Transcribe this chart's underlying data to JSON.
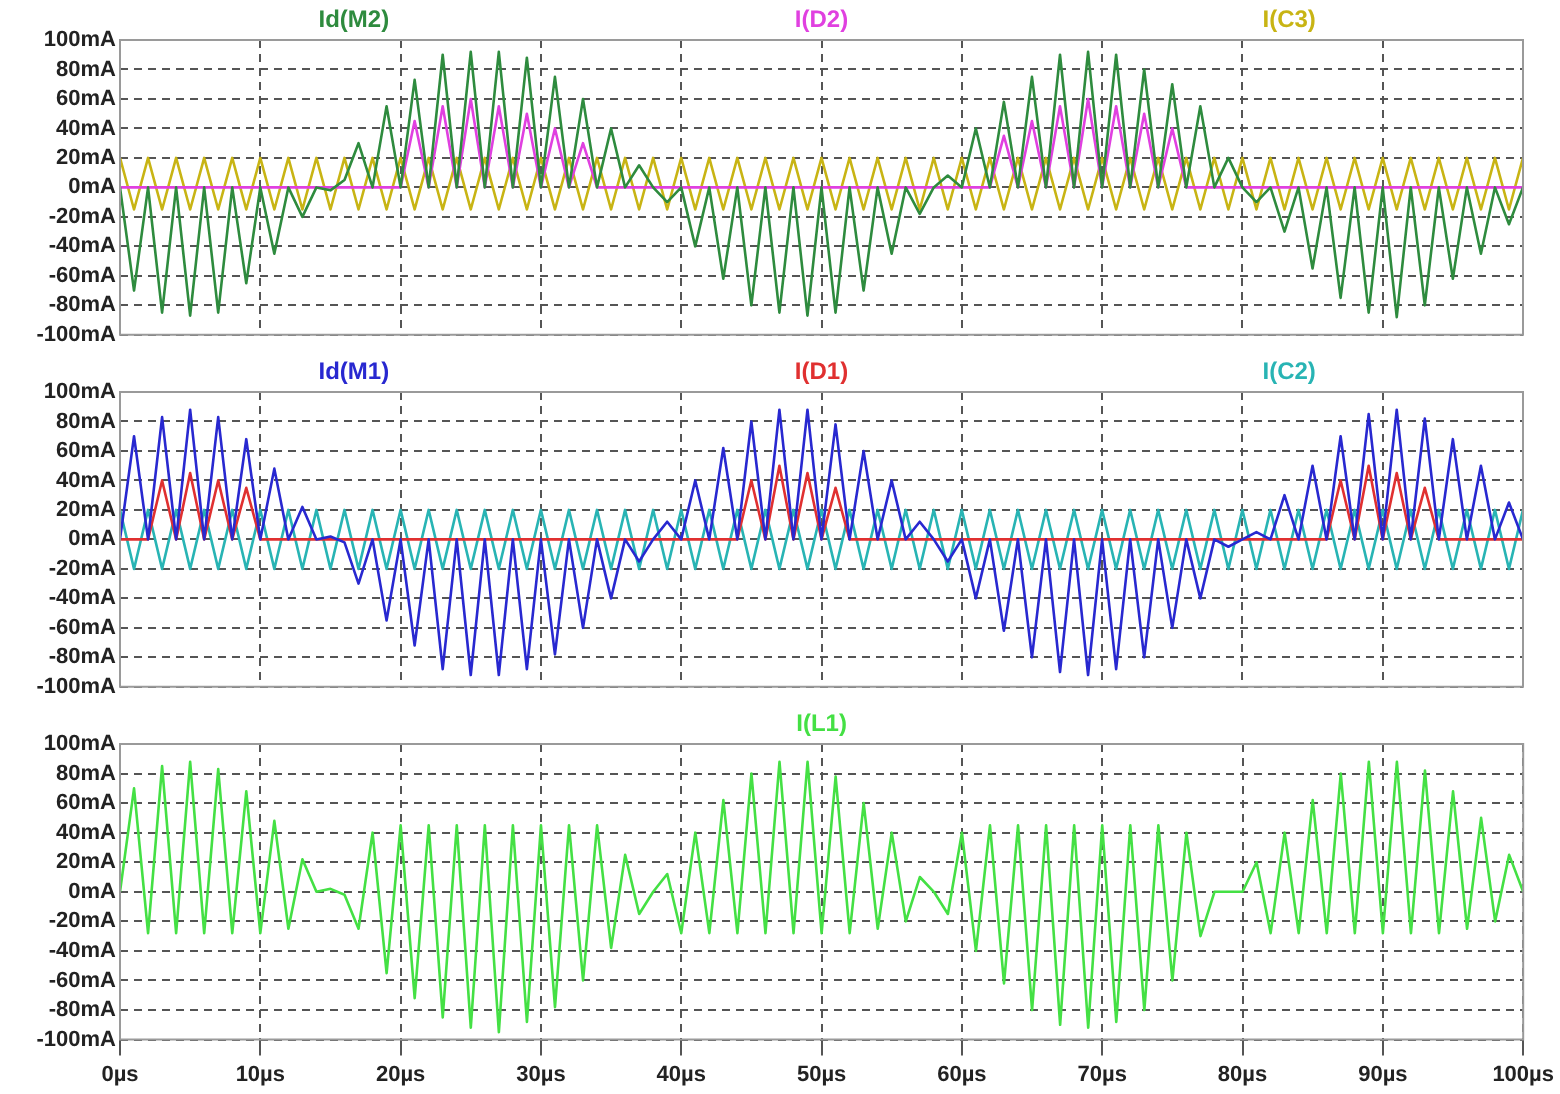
{
  "chart_data": [
    {
      "type": "line",
      "grid": true,
      "tick_labels": "y",
      "xlim": [
        0,
        100
      ],
      "xticks": [
        0,
        10,
        20,
        30,
        40,
        50,
        60,
        70,
        80,
        90,
        100
      ],
      "ylim": [
        -100,
        100
      ],
      "yticks": [
        {
          "value": -100,
          "label": "-100mA"
        },
        {
          "value": -80,
          "label": "-80mA"
        },
        {
          "value": -60,
          "label": "-60mA"
        },
        {
          "value": -40,
          "label": "-40mA"
        },
        {
          "value": -20,
          "label": "-20mA"
        },
        {
          "value": 0,
          "label": "0mA"
        },
        {
          "value": 20,
          "label": "20mA"
        },
        {
          "value": 40,
          "label": "40mA"
        },
        {
          "value": 60,
          "label": "60mA"
        },
        {
          "value": 80,
          "label": "80mA"
        },
        {
          "value": 100,
          "label": "100mA"
        }
      ],
      "x": [
        0,
        1,
        2,
        3,
        4,
        5,
        6,
        7,
        8,
        9,
        10,
        11,
        12,
        13,
        14,
        15,
        16,
        17,
        18,
        19,
        20,
        21,
        22,
        23,
        24,
        25,
        26,
        27,
        28,
        29,
        30,
        31,
        32,
        33,
        34,
        35,
        36,
        37,
        38,
        39,
        40,
        41,
        42,
        43,
        44,
        45,
        46,
        47,
        48,
        49,
        50,
        51,
        52,
        53,
        54,
        55,
        56,
        57,
        58,
        59,
        60,
        61,
        62,
        63,
        64,
        65,
        66,
        67,
        68,
        69,
        70,
        71,
        72,
        73,
        74,
        75,
        76,
        77,
        78,
        79,
        80,
        81,
        82,
        83,
        84,
        85,
        86,
        87,
        88,
        89,
        90,
        91,
        92,
        93,
        94,
        95,
        96,
        97,
        98,
        99,
        100
      ],
      "series": [
        {
          "name": "Id(M2)",
          "color": "#2e8b3e",
          "values": [
            0,
            -70,
            0,
            -85,
            0,
            -87,
            0,
            -85,
            0,
            -65,
            0,
            -45,
            0,
            -20,
            0,
            -2,
            5,
            30,
            0,
            55,
            0,
            73,
            0,
            90,
            0,
            92,
            0,
            92,
            0,
            88,
            0,
            75,
            0,
            60,
            0,
            40,
            0,
            15,
            0,
            -10,
            0,
            -40,
            0,
            -62,
            0,
            -80,
            0,
            -85,
            0,
            -87,
            0,
            -85,
            0,
            -70,
            0,
            -45,
            0,
            -18,
            0,
            8,
            0,
            40,
            0,
            58,
            0,
            75,
            0,
            90,
            0,
            92,
            0,
            90,
            0,
            80,
            0,
            70,
            0,
            55,
            0,
            20,
            0,
            -10,
            0,
            -30,
            0,
            -55,
            0,
            -75,
            0,
            -85,
            0,
            -88,
            0,
            -80,
            0,
            -62,
            0,
            -45,
            0,
            -25,
            0
          ]
        },
        {
          "name": "I(D2)",
          "color": "#e040e0",
          "values": [
            0,
            0,
            0,
            0,
            0,
            0,
            0,
            0,
            0,
            0,
            0,
            0,
            0,
            0,
            0,
            0,
            0,
            0,
            0,
            0,
            0,
            45,
            0,
            55,
            0,
            60,
            0,
            55,
            0,
            50,
            0,
            40,
            0,
            30,
            0,
            0,
            0,
            0,
            0,
            0,
            0,
            0,
            0,
            0,
            0,
            0,
            0,
            0,
            0,
            0,
            0,
            0,
            0,
            0,
            0,
            0,
            0,
            0,
            0,
            0,
            0,
            0,
            0,
            35,
            0,
            45,
            0,
            55,
            0,
            60,
            0,
            55,
            0,
            50,
            0,
            40,
            0,
            0,
            0,
            0,
            0,
            0,
            0,
            0,
            0,
            0,
            0,
            0,
            0,
            0,
            0,
            0,
            0,
            0,
            0,
            0,
            0,
            0,
            0,
            0,
            0
          ]
        },
        {
          "name": "I(C3)",
          "color": "#c8b414",
          "values": [
            20,
            -15,
            20,
            -15,
            20,
            -15,
            20,
            -15,
            20,
            -15,
            20,
            -15,
            20,
            -15,
            20,
            -15,
            20,
            -15,
            20,
            -15,
            20,
            -15,
            20,
            -15,
            20,
            -15,
            20,
            -15,
            20,
            -15,
            20,
            -15,
            20,
            -15,
            20,
            -15,
            20,
            -15,
            20,
            -15,
            20,
            -15,
            20,
            -15,
            20,
            -15,
            20,
            -15,
            20,
            -15,
            20,
            -15,
            20,
            -15,
            20,
            -15,
            20,
            -15,
            20,
            -15,
            20,
            -15,
            20,
            -15,
            20,
            -15,
            20,
            -15,
            20,
            -15,
            20,
            -15,
            20,
            -15,
            20,
            -15,
            20,
            -15,
            20,
            -15,
            20,
            -15,
            20,
            -15,
            20,
            -15,
            20,
            -15,
            20,
            -15,
            20,
            -15,
            20,
            -15,
            20,
            -15,
            20,
            -15,
            20,
            -15,
            20
          ]
        }
      ]
    },
    {
      "type": "line",
      "grid": true,
      "tick_labels": "y",
      "xlim": [
        0,
        100
      ],
      "xticks": [
        0,
        10,
        20,
        30,
        40,
        50,
        60,
        70,
        80,
        90,
        100
      ],
      "ylim": [
        -100,
        100
      ],
      "yticks": [
        {
          "value": -100,
          "label": "-100mA"
        },
        {
          "value": -80,
          "label": "-80mA"
        },
        {
          "value": -60,
          "label": "-60mA"
        },
        {
          "value": -40,
          "label": "-40mA"
        },
        {
          "value": -20,
          "label": "-20mA"
        },
        {
          "value": 0,
          "label": "0mA"
        },
        {
          "value": 20,
          "label": "20mA"
        },
        {
          "value": 40,
          "label": "40mA"
        },
        {
          "value": 60,
          "label": "60mA"
        },
        {
          "value": 80,
          "label": "80mA"
        },
        {
          "value": 100,
          "label": "100mA"
        }
      ],
      "x": [
        0,
        1,
        2,
        3,
        4,
        5,
        6,
        7,
        8,
        9,
        10,
        11,
        12,
        13,
        14,
        15,
        16,
        17,
        18,
        19,
        20,
        21,
        22,
        23,
        24,
        25,
        26,
        27,
        28,
        29,
        30,
        31,
        32,
        33,
        34,
        35,
        36,
        37,
        38,
        39,
        40,
        41,
        42,
        43,
        44,
        45,
        46,
        47,
        48,
        49,
        50,
        51,
        52,
        53,
        54,
        55,
        56,
        57,
        58,
        59,
        60,
        61,
        62,
        63,
        64,
        65,
        66,
        67,
        68,
        69,
        70,
        71,
        72,
        73,
        74,
        75,
        76,
        77,
        78,
        79,
        80,
        81,
        82,
        83,
        84,
        85,
        86,
        87,
        88,
        89,
        90,
        91,
        92,
        93,
        94,
        95,
        96,
        97,
        98,
        99,
        100
      ],
      "series": [
        {
          "name": "Id(M1)",
          "color": "#2828d0",
          "values": [
            0,
            70,
            0,
            83,
            0,
            88,
            0,
            83,
            0,
            68,
            0,
            48,
            0,
            22,
            0,
            2,
            -2,
            -30,
            0,
            -55,
            0,
            -72,
            0,
            -88,
            0,
            -92,
            0,
            -92,
            0,
            -88,
            0,
            -78,
            0,
            -60,
            0,
            -40,
            0,
            -15,
            0,
            12,
            0,
            40,
            0,
            62,
            0,
            80,
            0,
            88,
            0,
            88,
            0,
            78,
            0,
            60,
            0,
            40,
            0,
            12,
            0,
            -15,
            0,
            -40,
            0,
            -62,
            0,
            -80,
            0,
            -90,
            0,
            -92,
            0,
            -88,
            0,
            -80,
            0,
            -60,
            0,
            -40,
            0,
            -5,
            0,
            5,
            0,
            30,
            0,
            50,
            0,
            70,
            0,
            85,
            0,
            88,
            0,
            82,
            0,
            68,
            0,
            50,
            0,
            25,
            0
          ]
        },
        {
          "name": "I(D1)",
          "color": "#e03030",
          "values": [
            0,
            0,
            0,
            40,
            0,
            45,
            0,
            40,
            0,
            35,
            0,
            0,
            0,
            0,
            0,
            0,
            0,
            0,
            0,
            0,
            0,
            0,
            0,
            0,
            0,
            0,
            0,
            0,
            0,
            0,
            0,
            0,
            0,
            0,
            0,
            0,
            0,
            0,
            0,
            0,
            0,
            0,
            0,
            0,
            0,
            40,
            0,
            50,
            0,
            45,
            0,
            35,
            0,
            0,
            0,
            0,
            0,
            0,
            0,
            0,
            0,
            0,
            0,
            0,
            0,
            0,
            0,
            0,
            0,
            0,
            0,
            0,
            0,
            0,
            0,
            0,
            0,
            0,
            0,
            0,
            0,
            0,
            0,
            0,
            0,
            0,
            0,
            40,
            0,
            50,
            0,
            45,
            0,
            35,
            0,
            0,
            0,
            0,
            0,
            0,
            0
          ]
        },
        {
          "name": "I(C2)",
          "color": "#28b4b4",
          "values": [
            20,
            -20,
            20,
            -20,
            20,
            -20,
            20,
            -20,
            20,
            -20,
            20,
            -20,
            20,
            -20,
            20,
            -20,
            20,
            -20,
            20,
            -20,
            20,
            -20,
            20,
            -20,
            20,
            -20,
            20,
            -20,
            20,
            -20,
            20,
            -20,
            20,
            -20,
            20,
            -20,
            20,
            -20,
            20,
            -20,
            20,
            -20,
            20,
            -20,
            20,
            -20,
            20,
            -20,
            20,
            -20,
            20,
            -20,
            20,
            -20,
            20,
            -20,
            20,
            -20,
            20,
            -20,
            20,
            -20,
            20,
            -20,
            20,
            -20,
            20,
            -20,
            20,
            -20,
            20,
            -20,
            20,
            -20,
            20,
            -20,
            20,
            -20,
            20,
            -20,
            20,
            -20,
            20,
            -20,
            20,
            -20,
            20,
            -20,
            20,
            -20,
            20,
            -20,
            20,
            -20,
            20,
            -20,
            20,
            -20,
            20,
            -20,
            20
          ]
        }
      ]
    },
    {
      "type": "line",
      "grid": true,
      "xlim": [
        0,
        100
      ],
      "xticks": [
        {
          "value": 0,
          "label": "0µs"
        },
        {
          "value": 10,
          "label": "10µs"
        },
        {
          "value": 20,
          "label": "20µs"
        },
        {
          "value": 30,
          "label": "30µs"
        },
        {
          "value": 40,
          "label": "40µs"
        },
        {
          "value": 50,
          "label": "50µs"
        },
        {
          "value": 60,
          "label": "60µs"
        },
        {
          "value": 70,
          "label": "70µs"
        },
        {
          "value": 80,
          "label": "80µs"
        },
        {
          "value": 90,
          "label": "90µs"
        },
        {
          "value": 100,
          "label": "100µs"
        }
      ],
      "ylim": [
        -100,
        100
      ],
      "yticks": [
        {
          "value": -100,
          "label": "-100mA"
        },
        {
          "value": -80,
          "label": "-80mA"
        },
        {
          "value": -60,
          "label": "-60mA"
        },
        {
          "value": -40,
          "label": "-40mA"
        },
        {
          "value": -20,
          "label": "-20mA"
        },
        {
          "value": 0,
          "label": "0mA"
        },
        {
          "value": 20,
          "label": "20mA"
        },
        {
          "value": 40,
          "label": "40mA"
        },
        {
          "value": 60,
          "label": "60mA"
        },
        {
          "value": 80,
          "label": "80mA"
        },
        {
          "value": 100,
          "label": "100mA"
        }
      ],
      "x": [
        0,
        1,
        2,
        3,
        4,
        5,
        6,
        7,
        8,
        9,
        10,
        11,
        12,
        13,
        14,
        15,
        16,
        17,
        18,
        19,
        20,
        21,
        22,
        23,
        24,
        25,
        26,
        27,
        28,
        29,
        30,
        31,
        32,
        33,
        34,
        35,
        36,
        37,
        38,
        39,
        40,
        41,
        42,
        43,
        44,
        45,
        46,
        47,
        48,
        49,
        50,
        51,
        52,
        53,
        54,
        55,
        56,
        57,
        58,
        59,
        60,
        61,
        62,
        63,
        64,
        65,
        66,
        67,
        68,
        69,
        70,
        71,
        72,
        73,
        74,
        75,
        76,
        77,
        78,
        79,
        80,
        81,
        82,
        83,
        84,
        85,
        86,
        87,
        88,
        89,
        90,
        91,
        92,
        93,
        94,
        95,
        96,
        97,
        98,
        99,
        100
      ],
      "series": [
        {
          "name": "I(L1)",
          "color": "#44e044",
          "values": [
            0,
            70,
            -28,
            85,
            -28,
            88,
            -28,
            83,
            -28,
            68,
            -28,
            48,
            -25,
            22,
            0,
            2,
            -2,
            -25,
            40,
            -55,
            45,
            -72,
            45,
            -85,
            45,
            -92,
            45,
            -95,
            45,
            -88,
            45,
            -78,
            45,
            -60,
            45,
            -38,
            25,
            -15,
            0,
            12,
            -28,
            40,
            -28,
            62,
            -28,
            80,
            -28,
            88,
            -28,
            88,
            -28,
            78,
            -28,
            60,
            -25,
            40,
            -20,
            10,
            0,
            -15,
            40,
            -40,
            45,
            -62,
            45,
            -80,
            45,
            -90,
            45,
            -92,
            45,
            -88,
            45,
            -80,
            45,
            -60,
            40,
            -30,
            0,
            0,
            0,
            20,
            -28,
            40,
            -28,
            62,
            -28,
            80,
            -28,
            88,
            -28,
            88,
            -28,
            82,
            -28,
            68,
            -25,
            50,
            -20,
            25,
            0
          ]
        }
      ]
    }
  ]
}
